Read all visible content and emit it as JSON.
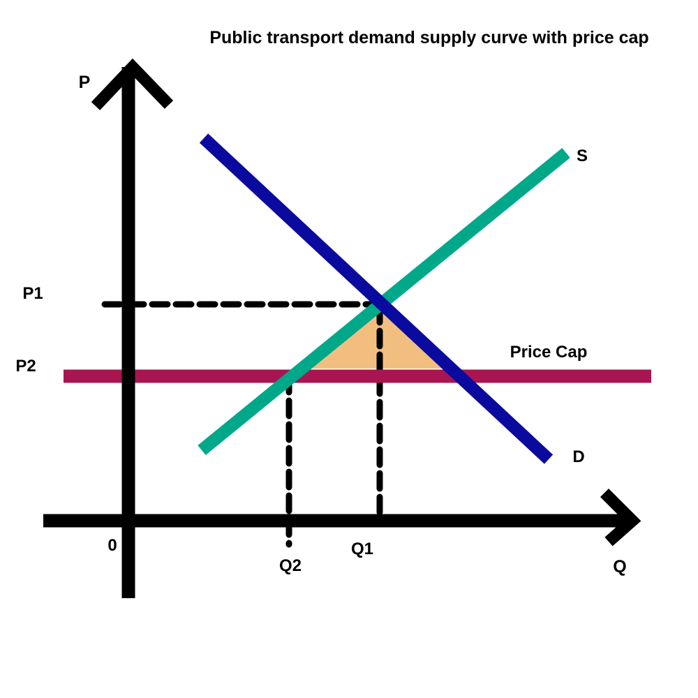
{
  "title": "Public transport demand supply curve with price cap",
  "axes": {
    "y_label": "P",
    "x_label": "Q",
    "origin_label": "0"
  },
  "price_levels": {
    "p1": "P1",
    "p2": "P2"
  },
  "quantity_levels": {
    "q1": "Q1",
    "q2": "Q2"
  },
  "curves": {
    "supply": {
      "label": "S",
      "color": "#00a88a"
    },
    "demand": {
      "label": "D",
      "color": "#0a0a9e"
    },
    "price_cap": {
      "label": "Price Cap",
      "color": "#a81550"
    }
  },
  "shaded_area": {
    "color": "#f2be80"
  },
  "colors": {
    "axes": "#000000",
    "guides": "#000000"
  }
}
